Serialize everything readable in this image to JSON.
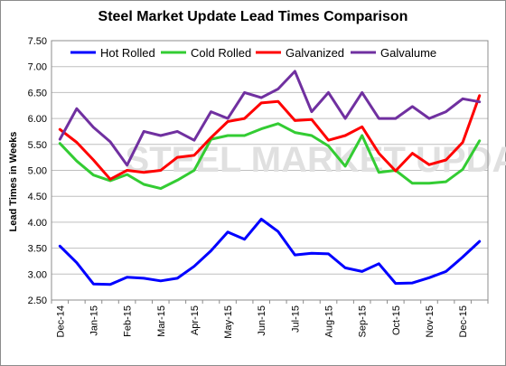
{
  "chart_data": {
    "type": "line",
    "title": "Steel Market Update Lead Times Comparison",
    "ylabel": "Lead Times in Weeks",
    "xlabel": "",
    "watermark": "STEEL MARKET UPDATE",
    "ylim": [
      2.5,
      7.5
    ],
    "yticks": [
      "2.50",
      "3.00",
      "3.50",
      "4.00",
      "4.50",
      "5.00",
      "5.50",
      "6.00",
      "6.50",
      "7.00",
      "7.50"
    ],
    "grid": true,
    "legend_position": "top",
    "x": [
      "Dec-14",
      "",
      "Jan-15",
      "",
      "Feb-15",
      "",
      "Mar-15",
      "",
      "Apr-15",
      "",
      "May-15",
      "",
      "Jun-15",
      "",
      "Jul-15",
      "",
      "Aug-15",
      "",
      "Sep-15",
      "",
      "Oct-15",
      "",
      "Nov-15",
      "",
      "Dec-15",
      ""
    ],
    "series": [
      {
        "name": "Hot Rolled",
        "color": "#0000ff",
        "values": [
          3.54,
          3.22,
          2.81,
          2.8,
          2.94,
          2.92,
          2.87,
          2.92,
          3.15,
          3.45,
          3.81,
          3.67,
          4.06,
          3.82,
          3.37,
          3.4,
          3.39,
          3.12,
          3.05,
          3.2,
          2.82,
          2.83,
          2.93,
          3.05,
          3.33,
          3.63
        ]
      },
      {
        "name": "Cold Rolled",
        "color": "#33cc33",
        "values": [
          5.52,
          5.18,
          4.91,
          4.8,
          4.92,
          4.73,
          4.65,
          4.81,
          5.0,
          5.6,
          5.67,
          5.67,
          5.8,
          5.9,
          5.73,
          5.67,
          5.47,
          5.08,
          5.67,
          4.96,
          5.0,
          4.75,
          4.75,
          4.78,
          5.02,
          5.57
        ]
      },
      {
        "name": "Galvanized",
        "color": "#ff0000",
        "values": [
          5.79,
          5.54,
          5.2,
          4.83,
          5.0,
          4.96,
          5.0,
          5.25,
          5.29,
          5.63,
          5.94,
          6.0,
          6.3,
          6.33,
          5.96,
          5.98,
          5.58,
          5.67,
          5.84,
          5.33,
          4.99,
          5.33,
          5.11,
          5.2,
          5.54,
          6.44
        ]
      },
      {
        "name": "Galvalume",
        "color": "#7030a0",
        "values": [
          5.6,
          6.19,
          5.83,
          5.55,
          5.1,
          5.75,
          5.67,
          5.75,
          5.58,
          6.13,
          6.0,
          6.5,
          6.4,
          6.57,
          6.91,
          6.13,
          6.5,
          6.0,
          6.5,
          6.0,
          6.0,
          6.23,
          6.0,
          6.13,
          6.38,
          6.32
        ]
      }
    ]
  }
}
